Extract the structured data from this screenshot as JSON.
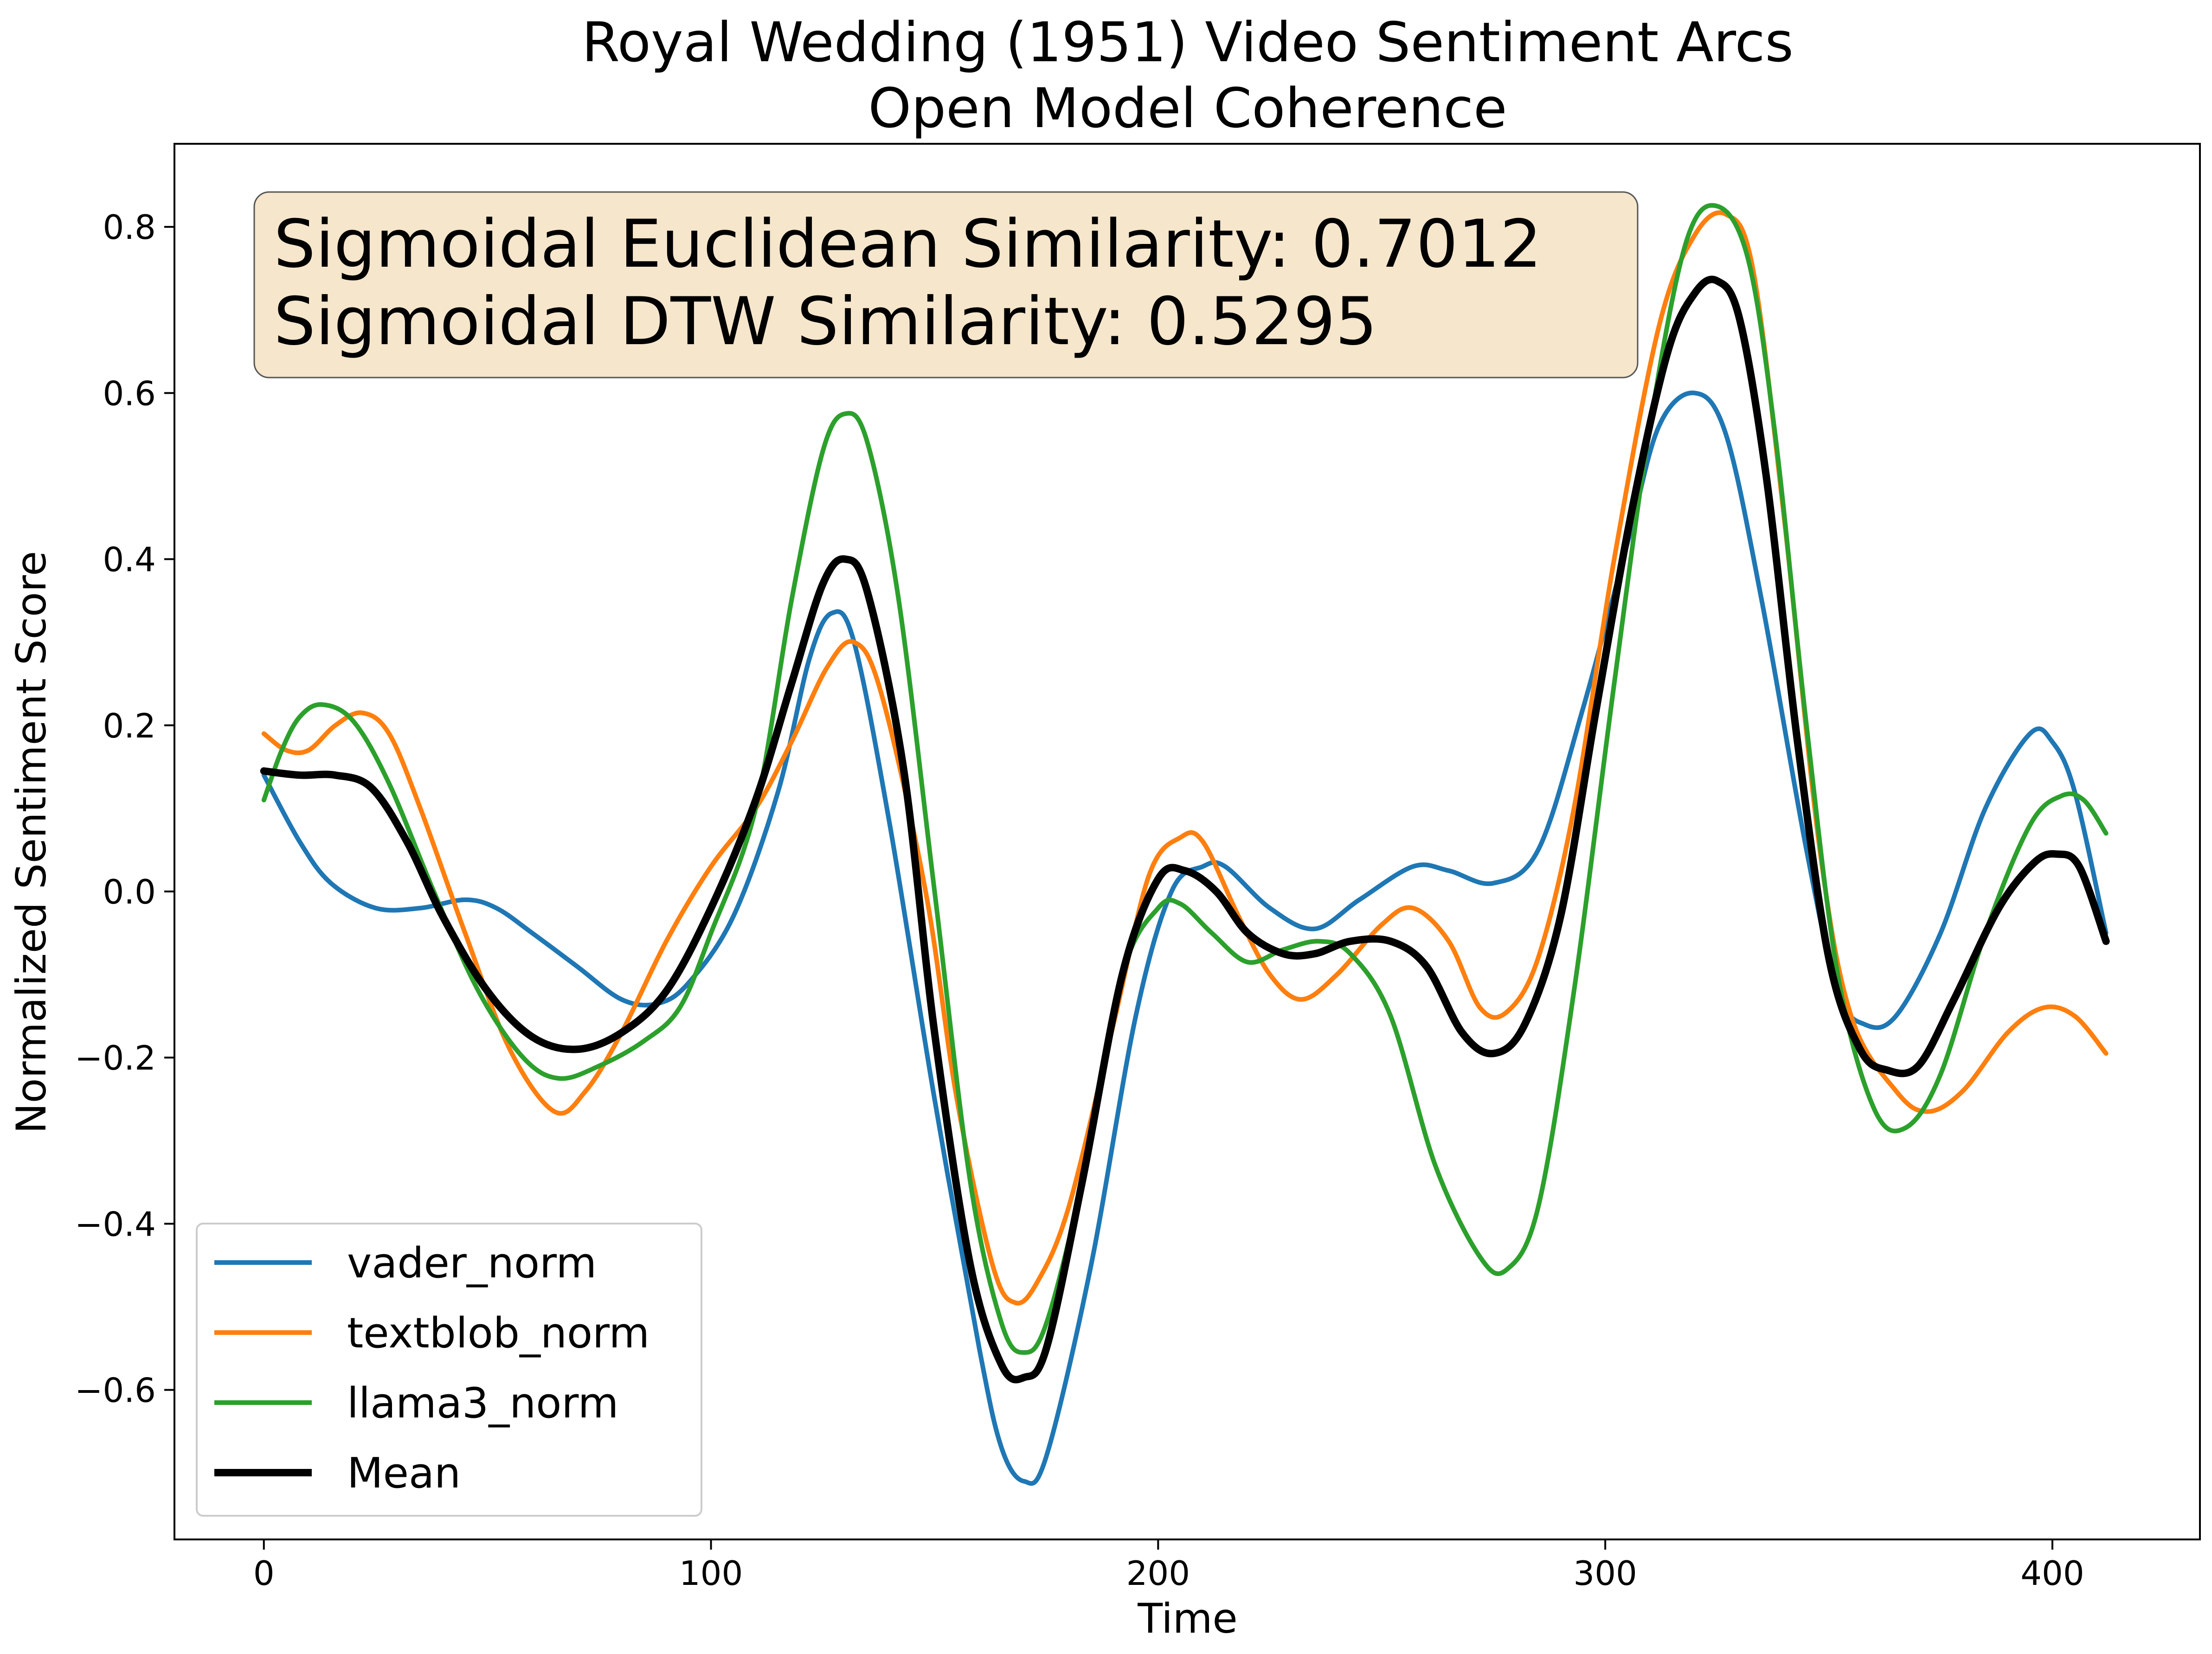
{
  "chart_data": {
    "type": "line",
    "title": "Royal Wedding (1951) Video Sentiment Arcs",
    "subtitle": "Open Model Coherence",
    "xlabel": "Time",
    "ylabel": "Normalized Sentiment Score",
    "xlim": [
      -20,
      433
    ],
    "ylim": [
      -0.78,
      0.9
    ],
    "xticks": [
      0,
      100,
      200,
      300,
      400
    ],
    "xtick_labels": [
      "0",
      "100",
      "200",
      "300",
      "400"
    ],
    "yticks": [
      -0.6,
      -0.4,
      -0.2,
      0.0,
      0.2,
      0.4,
      0.6,
      0.8
    ],
    "ytick_labels": [
      "−0.6",
      "−0.4",
      "−0.2",
      "0.0",
      "0.2",
      "0.4",
      "0.6",
      "0.8"
    ],
    "grid": false,
    "legend_position": "lower-left",
    "annotation": {
      "lines": [
        "Sigmoidal Euclidean Similarity: 0.7012",
        "Sigmoidal DTW Similarity: 0.5295"
      ],
      "background": "#f5e6cc",
      "border": "#555555"
    },
    "series": [
      {
        "name": "vader_norm",
        "color": "#1f77b4",
        "points": [
          [
            0,
            0.14
          ],
          [
            8,
            0.06
          ],
          [
            15,
            0.01
          ],
          [
            25,
            -0.02
          ],
          [
            35,
            -0.02
          ],
          [
            45,
            -0.01
          ],
          [
            52,
            -0.02
          ],
          [
            60,
            -0.05
          ],
          [
            70,
            -0.09
          ],
          [
            80,
            -0.13
          ],
          [
            88,
            -0.135
          ],
          [
            95,
            -0.11
          ],
          [
            105,
            -0.03
          ],
          [
            115,
            0.12
          ],
          [
            122,
            0.28
          ],
          [
            127,
            0.335
          ],
          [
            132,
            0.3
          ],
          [
            140,
            0.08
          ],
          [
            150,
            -0.25
          ],
          [
            160,
            -0.55
          ],
          [
            165,
            -0.67
          ],
          [
            170,
            -0.71
          ],
          [
            175,
            -0.68
          ],
          [
            185,
            -0.45
          ],
          [
            195,
            -0.15
          ],
          [
            203,
            0.0
          ],
          [
            210,
            0.03
          ],
          [
            215,
            0.03
          ],
          [
            225,
            -0.02
          ],
          [
            235,
            -0.045
          ],
          [
            245,
            -0.01
          ],
          [
            257,
            0.03
          ],
          [
            265,
            0.025
          ],
          [
            275,
            0.01
          ],
          [
            285,
            0.05
          ],
          [
            295,
            0.22
          ],
          [
            305,
            0.42
          ],
          [
            312,
            0.56
          ],
          [
            320,
            0.6
          ],
          [
            327,
            0.55
          ],
          [
            335,
            0.35
          ],
          [
            345,
            0.05
          ],
          [
            352,
            -0.12
          ],
          [
            358,
            -0.16
          ],
          [
            365,
            -0.15
          ],
          [
            375,
            -0.05
          ],
          [
            385,
            0.1
          ],
          [
            395,
            0.19
          ],
          [
            400,
            0.18
          ],
          [
            405,
            0.12
          ],
          [
            412,
            -0.05
          ]
        ]
      },
      {
        "name": "textblob_norm",
        "color": "#ff7f0e",
        "points": [
          [
            0,
            0.19
          ],
          [
            5,
            0.17
          ],
          [
            10,
            0.17
          ],
          [
            16,
            0.2
          ],
          [
            22,
            0.215
          ],
          [
            28,
            0.19
          ],
          [
            35,
            0.1
          ],
          [
            45,
            -0.05
          ],
          [
            55,
            -0.19
          ],
          [
            65,
            -0.265
          ],
          [
            72,
            -0.24
          ],
          [
            80,
            -0.17
          ],
          [
            90,
            -0.06
          ],
          [
            100,
            0.03
          ],
          [
            110,
            0.1
          ],
          [
            118,
            0.18
          ],
          [
            126,
            0.27
          ],
          [
            132,
            0.3
          ],
          [
            138,
            0.24
          ],
          [
            148,
            0.0
          ],
          [
            155,
            -0.25
          ],
          [
            163,
            -0.45
          ],
          [
            168,
            -0.495
          ],
          [
            173,
            -0.47
          ],
          [
            180,
            -0.38
          ],
          [
            190,
            -0.16
          ],
          [
            198,
            0.02
          ],
          [
            205,
            0.065
          ],
          [
            210,
            0.06
          ],
          [
            218,
            -0.03
          ],
          [
            225,
            -0.1
          ],
          [
            232,
            -0.13
          ],
          [
            240,
            -0.1
          ],
          [
            250,
            -0.04
          ],
          [
            257,
            -0.02
          ],
          [
            265,
            -0.06
          ],
          [
            272,
            -0.14
          ],
          [
            278,
            -0.145
          ],
          [
            285,
            -0.08
          ],
          [
            293,
            0.1
          ],
          [
            302,
            0.4
          ],
          [
            312,
            0.68
          ],
          [
            320,
            0.79
          ],
          [
            327,
            0.815
          ],
          [
            333,
            0.75
          ],
          [
            340,
            0.45
          ],
          [
            348,
            0.05
          ],
          [
            355,
            -0.15
          ],
          [
            365,
            -0.24
          ],
          [
            372,
            -0.265
          ],
          [
            380,
            -0.24
          ],
          [
            390,
            -0.17
          ],
          [
            398,
            -0.14
          ],
          [
            405,
            -0.15
          ],
          [
            412,
            -0.195
          ]
        ]
      },
      {
        "name": "llama3_norm",
        "color": "#2ca02c",
        "points": [
          [
            0,
            0.11
          ],
          [
            4,
            0.17
          ],
          [
            8,
            0.21
          ],
          [
            13,
            0.225
          ],
          [
            20,
            0.205
          ],
          [
            28,
            0.13
          ],
          [
            38,
            0.0
          ],
          [
            48,
            -0.12
          ],
          [
            58,
            -0.2
          ],
          [
            66,
            -0.225
          ],
          [
            75,
            -0.21
          ],
          [
            85,
            -0.18
          ],
          [
            93,
            -0.14
          ],
          [
            100,
            -0.05
          ],
          [
            110,
            0.1
          ],
          [
            118,
            0.35
          ],
          [
            125,
            0.53
          ],
          [
            130,
            0.575
          ],
          [
            135,
            0.54
          ],
          [
            142,
            0.35
          ],
          [
            150,
            0.0
          ],
          [
            158,
            -0.35
          ],
          [
            165,
            -0.52
          ],
          [
            170,
            -0.555
          ],
          [
            175,
            -0.52
          ],
          [
            183,
            -0.35
          ],
          [
            192,
            -0.1
          ],
          [
            200,
            -0.02
          ],
          [
            205,
            -0.015
          ],
          [
            212,
            -0.05
          ],
          [
            220,
            -0.085
          ],
          [
            228,
            -0.07
          ],
          [
            236,
            -0.06
          ],
          [
            243,
            -0.075
          ],
          [
            252,
            -0.15
          ],
          [
            262,
            -0.33
          ],
          [
            272,
            -0.44
          ],
          [
            278,
            -0.455
          ],
          [
            285,
            -0.38
          ],
          [
            293,
            -0.12
          ],
          [
            302,
            0.25
          ],
          [
            310,
            0.56
          ],
          [
            318,
            0.78
          ],
          [
            325,
            0.825
          ],
          [
            332,
            0.76
          ],
          [
            338,
            0.55
          ],
          [
            345,
            0.2
          ],
          [
            352,
            -0.1
          ],
          [
            360,
            -0.26
          ],
          [
            367,
            -0.285
          ],
          [
            375,
            -0.22
          ],
          [
            385,
            -0.05
          ],
          [
            395,
            0.08
          ],
          [
            402,
            0.115
          ],
          [
            407,
            0.11
          ],
          [
            412,
            0.07
          ]
        ]
      },
      {
        "name": "Mean",
        "color": "#000000",
        "points": [
          [
            0,
            0.145
          ],
          [
            8,
            0.14
          ],
          [
            16,
            0.14
          ],
          [
            24,
            0.125
          ],
          [
            32,
            0.06
          ],
          [
            40,
            -0.03
          ],
          [
            50,
            -0.12
          ],
          [
            60,
            -0.175
          ],
          [
            70,
            -0.19
          ],
          [
            80,
            -0.17
          ],
          [
            90,
            -0.12
          ],
          [
            100,
            -0.02
          ],
          [
            110,
            0.11
          ],
          [
            118,
            0.25
          ],
          [
            125,
            0.37
          ],
          [
            130,
            0.4
          ],
          [
            135,
            0.36
          ],
          [
            143,
            0.15
          ],
          [
            150,
            -0.17
          ],
          [
            158,
            -0.45
          ],
          [
            165,
            -0.57
          ],
          [
            170,
            -0.585
          ],
          [
            175,
            -0.55
          ],
          [
            183,
            -0.35
          ],
          [
            192,
            -0.1
          ],
          [
            200,
            0.015
          ],
          [
            206,
            0.025
          ],
          [
            213,
            0.0
          ],
          [
            220,
            -0.05
          ],
          [
            228,
            -0.075
          ],
          [
            235,
            -0.075
          ],
          [
            243,
            -0.06
          ],
          [
            252,
            -0.06
          ],
          [
            260,
            -0.09
          ],
          [
            268,
            -0.17
          ],
          [
            275,
            -0.195
          ],
          [
            282,
            -0.16
          ],
          [
            290,
            -0.03
          ],
          [
            298,
            0.22
          ],
          [
            306,
            0.46
          ],
          [
            314,
            0.65
          ],
          [
            320,
            0.72
          ],
          [
            325,
            0.735
          ],
          [
            330,
            0.69
          ],
          [
            336,
            0.5
          ],
          [
            343,
            0.18
          ],
          [
            350,
            -0.08
          ],
          [
            357,
            -0.19
          ],
          [
            363,
            -0.215
          ],
          [
            370,
            -0.21
          ],
          [
            378,
            -0.13
          ],
          [
            388,
            -0.02
          ],
          [
            396,
            0.035
          ],
          [
            401,
            0.045
          ],
          [
            406,
            0.03
          ],
          [
            412,
            -0.06
          ]
        ]
      }
    ]
  }
}
